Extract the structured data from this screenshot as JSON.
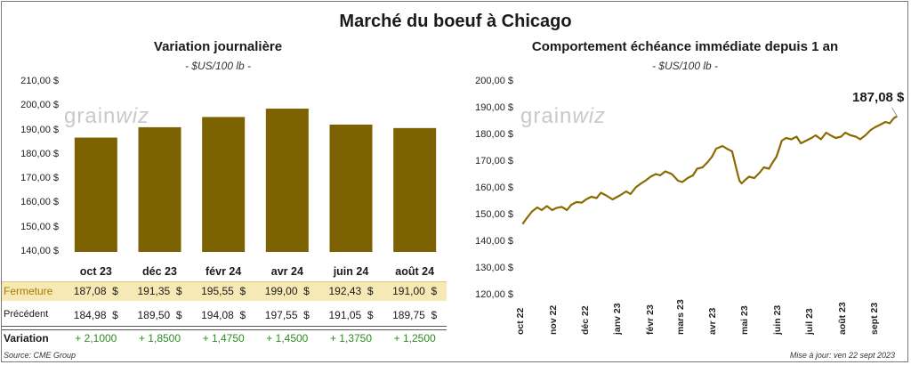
{
  "title": "Marché du boeuf à Chicago",
  "left_chart": {
    "title": "Variation journalière",
    "unit": "- $US/100 lb -"
  },
  "right_chart": {
    "title": "Comportement échéance immédiate depuis 1 an",
    "unit": "- $US/100 lb -",
    "last_label": "187,08 $"
  },
  "watermark": {
    "text1": "grain",
    "text2": "wiz"
  },
  "table": {
    "fermeture_label": "Fermeture",
    "precedent_label": "Précédent",
    "variation_label": "Variation",
    "fermeture": [
      "187,08  $",
      "191,35  $",
      "195,55  $",
      "199,00  $",
      "192,43  $",
      "191,00  $"
    ],
    "precedent": [
      "184,98  $",
      "189,50  $",
      "194,08  $",
      "197,55  $",
      "191,05  $",
      "189,75  $"
    ],
    "variation": [
      "+ 2,1000",
      "+ 1,8500",
      "+ 1,4750",
      "+ 1,4500",
      "+ 1,3750",
      "+ 1,2500"
    ]
  },
  "footer": {
    "source": "Source: CME Group",
    "updated": "Mise à jour: ven 22 sept 2023"
  },
  "colors": {
    "bar": "#7c6200",
    "line": "#8a6a00",
    "fermeture_bg": "#f7e9b5",
    "positive": "#2e8b22"
  },
  "chart_data": [
    {
      "type": "bar",
      "categories": [
        "oct 23",
        "déc 23",
        "févr 24",
        "avr 24",
        "juin 24",
        "août 24"
      ],
      "values": [
        187.08,
        191.35,
        195.55,
        199.0,
        192.43,
        191.0
      ],
      "ylim": [
        140,
        210
      ],
      "yticks": [
        "140,00 $",
        "150,00 $",
        "160,00 $",
        "170,00 $",
        "180,00 $",
        "190,00 $",
        "200,00 $",
        "210,00 $"
      ],
      "title": "Variation journalière",
      "ylabel": "- $US/100 lb -",
      "grid": false
    },
    {
      "type": "line",
      "title": "Comportement échéance immédiate depuis 1 an",
      "ylabel": "- $US/100 lb -",
      "ylim": [
        120,
        200
      ],
      "yticks": [
        "120,00 $",
        "130,00 $",
        "140,00 $",
        "150,00 $",
        "160,00 $",
        "170,00 $",
        "180,00 $",
        "190,00 $",
        "200,00 $"
      ],
      "xticks": [
        "oct 22",
        "nov 22",
        "déc 22",
        "janv 23",
        "févr 23",
        "mars 23",
        "avr 23",
        "mai 23",
        "juin 23",
        "juil 23",
        "août 23",
        "sept 23"
      ],
      "series": [
        {
          "x": [
            "2022-10-03",
            "2022-10-07",
            "2022-10-12",
            "2022-10-17",
            "2022-10-21",
            "2022-10-26",
            "2022-10-31",
            "2022-11-04",
            "2022-11-09",
            "2022-11-14",
            "2022-11-18",
            "2022-11-23",
            "2022-11-28",
            "2022-12-02",
            "2022-12-07",
            "2022-12-12",
            "2022-12-16",
            "2022-12-21",
            "2022-12-27",
            "2023-01-03",
            "2023-01-09",
            "2023-01-13",
            "2023-01-18",
            "2023-01-23",
            "2023-01-27",
            "2023-02-01",
            "2023-02-06",
            "2023-02-10",
            "2023-02-15",
            "2023-02-21",
            "2023-02-27",
            "2023-03-03",
            "2023-03-08",
            "2023-03-13",
            "2023-03-17",
            "2023-03-22",
            "2023-03-27",
            "2023-03-31",
            "2023-04-04",
            "2023-04-10",
            "2023-04-14",
            "2023-04-19",
            "2023-04-24",
            "2023-04-26",
            "2023-04-28",
            "2023-05-02",
            "2023-05-05",
            "2023-05-10",
            "2023-05-15",
            "2023-05-19",
            "2023-05-24",
            "2023-05-26",
            "2023-05-31",
            "2023-06-05",
            "2023-06-09",
            "2023-06-14",
            "2023-06-19",
            "2023-06-23",
            "2023-06-28",
            "2023-07-03",
            "2023-07-07",
            "2023-07-12",
            "2023-07-17",
            "2023-07-21",
            "2023-07-26",
            "2023-07-31",
            "2023-08-04",
            "2023-08-09",
            "2023-08-14",
            "2023-08-18",
            "2023-08-23",
            "2023-08-28",
            "2023-09-01",
            "2023-09-06",
            "2023-09-11",
            "2023-09-15",
            "2023-09-19",
            "2023-09-22"
          ],
          "y": [
            146.8,
            149.0,
            151.5,
            153.0,
            152.0,
            153.5,
            152.0,
            152.8,
            153.2,
            152.0,
            154.0,
            155.0,
            154.8,
            156.0,
            157.0,
            156.5,
            158.5,
            157.5,
            156.0,
            157.5,
            159.0,
            158.0,
            160.5,
            162.0,
            163.0,
            164.5,
            165.5,
            165.0,
            166.5,
            165.5,
            163.0,
            162.5,
            164.0,
            165.0,
            167.5,
            168.0,
            170.0,
            172.0,
            175.0,
            176.0,
            175.0,
            174.0,
            166.0,
            163.0,
            162.0,
            163.5,
            164.5,
            164.0,
            166.0,
            168.0,
            167.5,
            169.0,
            172.0,
            178.0,
            179.0,
            178.5,
            179.5,
            177.0,
            178.0,
            179.0,
            180.0,
            178.5,
            181.0,
            180.0,
            179.0,
            179.5,
            181.0,
            180.0,
            179.5,
            178.5,
            180.0,
            182.0,
            183.0,
            184.0,
            185.0,
            184.5,
            186.5,
            187.08
          ]
        }
      ]
    }
  ]
}
